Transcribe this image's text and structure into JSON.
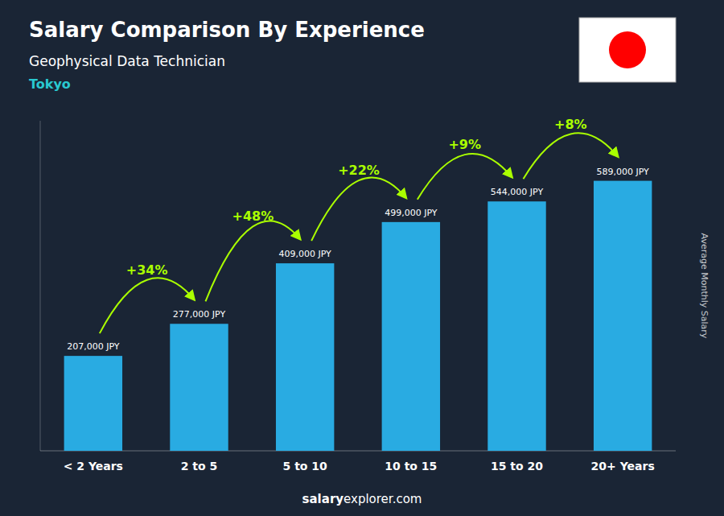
{
  "chart_data": {
    "type": "bar",
    "title": "Salary Comparison By Experience",
    "subtitle": "Geophysical Data Technician",
    "city": "Tokyo",
    "ylabel": "Average Monthly Salary",
    "categories": [
      "< 2 Years",
      "2 to 5",
      "5 to 10",
      "10 to 15",
      "15 to 20",
      "20+ Years"
    ],
    "values": [
      207000,
      277000,
      409000,
      499000,
      544000,
      589000
    ],
    "value_labels": [
      "207,000 JPY",
      "277,000 JPY",
      "409,000 JPY",
      "499,000 JPY",
      "544,000 JPY",
      "589,000 JPY"
    ],
    "data_labels": true,
    "annotations": [
      "+34%",
      "+48%",
      "+22%",
      "+9%",
      "+8%"
    ],
    "footer": [
      "salary",
      "explorer.com"
    ],
    "color": "#29ABE2",
    "ylim": [
      0,
      720000
    ],
    "grid": false,
    "tick_labels": "x"
  }
}
